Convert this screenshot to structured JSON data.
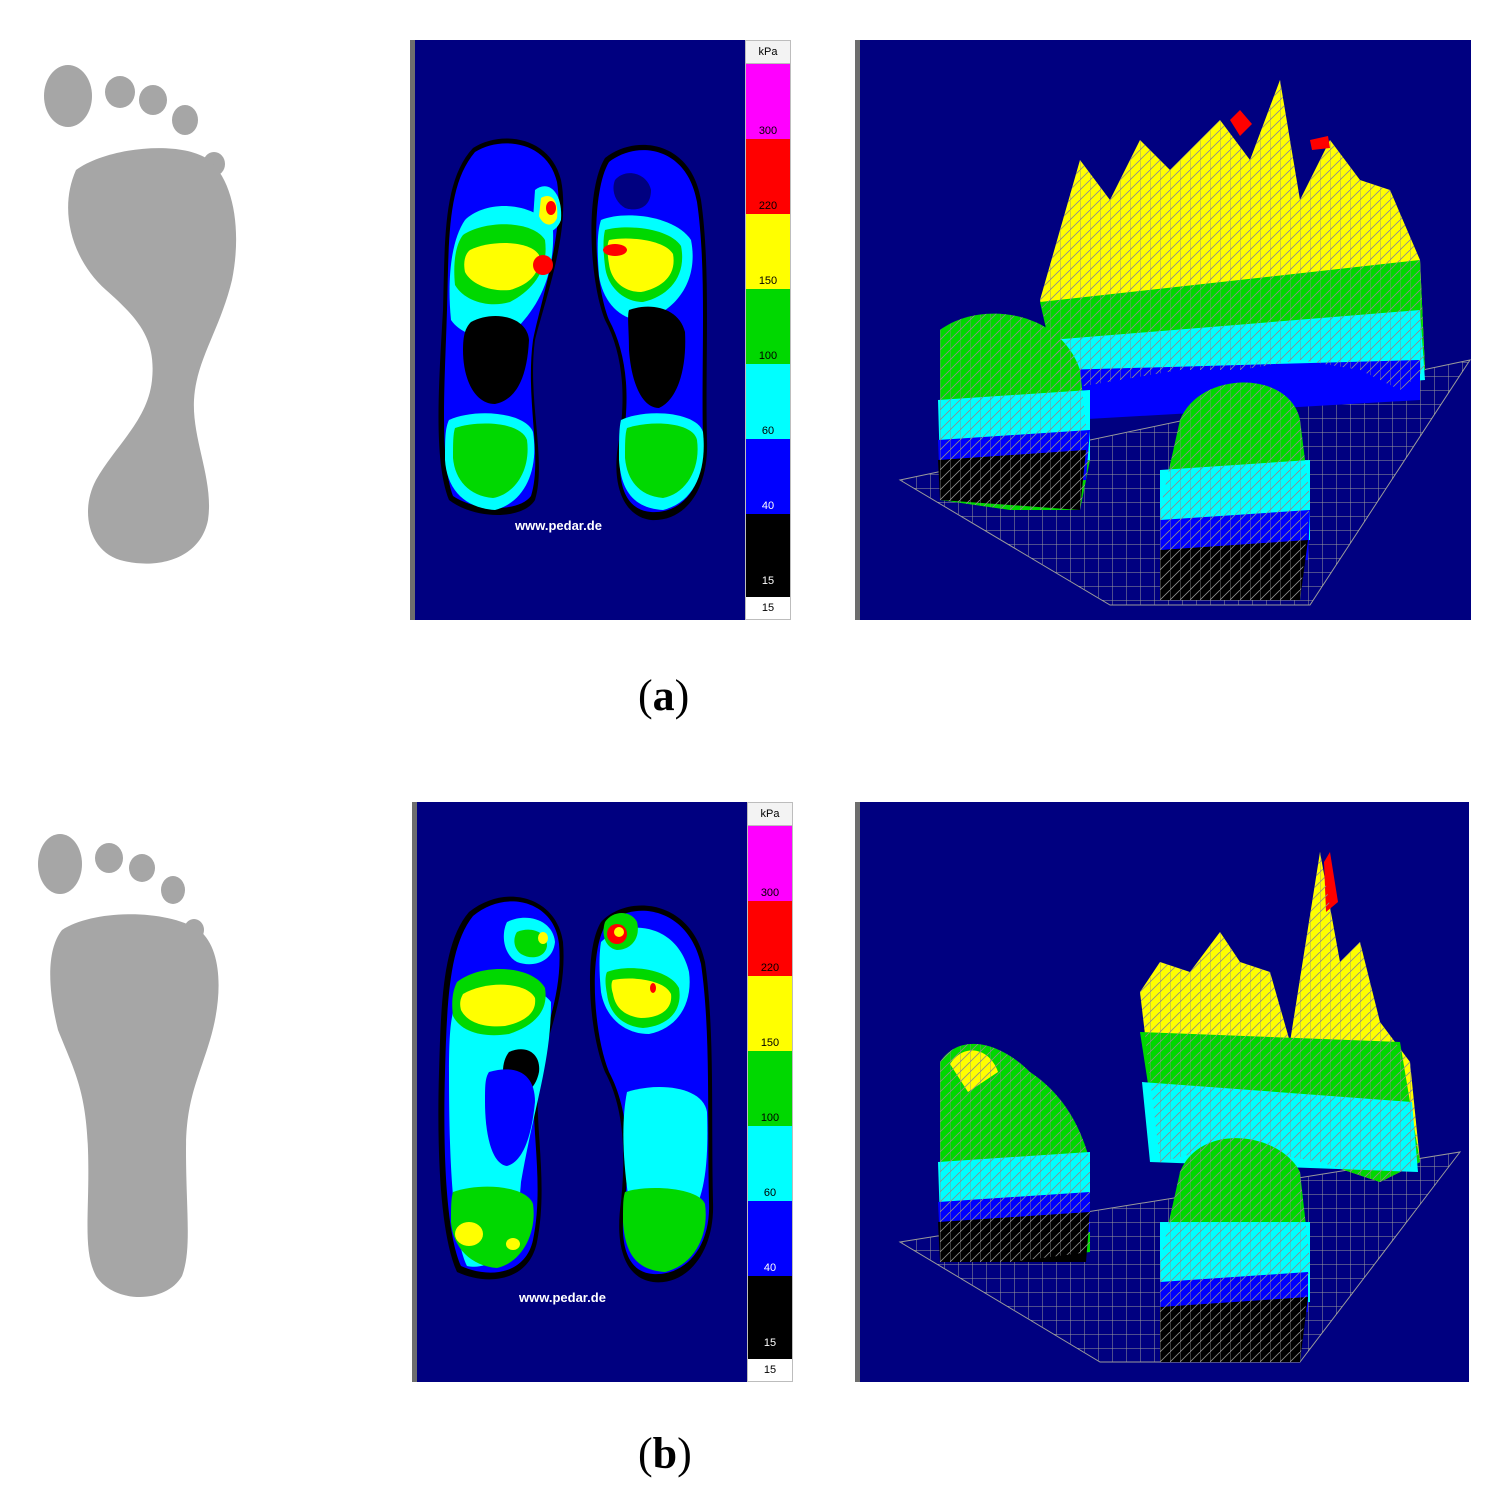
{
  "figure": {
    "panels": [
      {
        "id": "a",
        "caption_letter": "a",
        "watermark": "www.pedar.de",
        "scale": {
          "unit": "kPa",
          "ticks": [
            "300",
            "220",
            "150",
            "100",
            "60",
            "40",
            "15"
          ],
          "bottom_label": "15",
          "colors": [
            "#ff00ff",
            "#ff0000",
            "#ffff00",
            "#00d800",
            "#00ffff",
            "#0000ff",
            "#000000"
          ]
        }
      },
      {
        "id": "b",
        "caption_letter": "b",
        "watermark": "www.pedar.de",
        "scale": {
          "unit": "kPa",
          "ticks": [
            "300",
            "220",
            "150",
            "100",
            "60",
            "40",
            "15"
          ],
          "bottom_label": "15",
          "colors": [
            "#ff00ff",
            "#ff0000",
            "#ffff00",
            "#00d800",
            "#00ffff",
            "#0000ff",
            "#000000"
          ]
        }
      }
    ]
  }
}
